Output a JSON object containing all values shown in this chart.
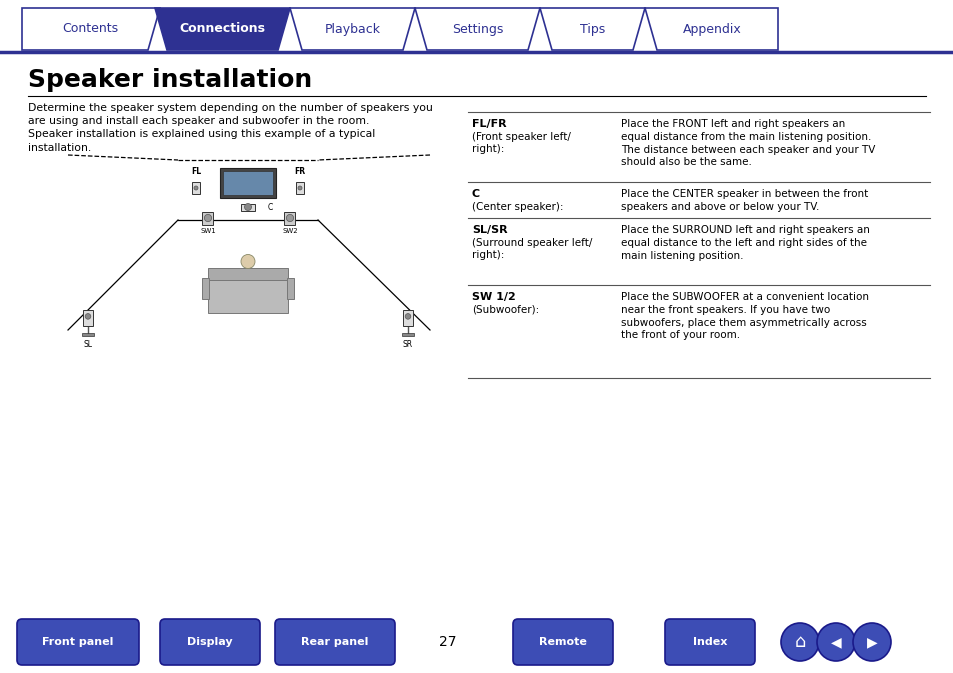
{
  "title": "Speaker installation",
  "nav_tabs": [
    "Contents",
    "Connections",
    "Playback",
    "Settings",
    "Tips",
    "Appendix"
  ],
  "active_tab": 1,
  "tab_color_active": "#2E3192",
  "tab_color_inactive": "#ffffff",
  "tab_border_color": "#2E3192",
  "tab_text_active": "#ffffff",
  "tab_text_inactive": "#2E3192",
  "nav_line_color": "#2E3192",
  "intro_text": "Determine the speaker system depending on the number of speakers you\nare using and install each speaker and subwoofer in the room.\nSpeaker installation is explained using this example of a typical\ninstallation.",
  "table_rows": [
    {
      "label_bold": "FL/FR",
      "label_normal": "(Front speaker left/\nright):",
      "desc": "Place the FRONT left and right speakers an\nequal distance from the main listening position.\nThe distance between each speaker and your TV\nshould also be the same."
    },
    {
      "label_bold": "C",
      "label_normal": "(Center speaker):",
      "desc": "Place the CENTER speaker in between the front\nspeakers and above or below your TV."
    },
    {
      "label_bold": "SL/SR",
      "label_normal": "(Surround speaker left/\nright):",
      "desc": "Place the SURROUND left and right speakers an\nequal distance to the left and right sides of the\nmain listening position."
    },
    {
      "label_bold": "SW 1/2",
      "label_normal": "(Subwoofer):",
      "desc": "Place the SUBWOOFER at a convenient location\nnear the front speakers. If you have two\nsubwoofers, place them asymmetrically across\nthe front of your room."
    }
  ],
  "bottom_buttons": [
    "Front panel",
    "Display",
    "Rear panel",
    "Remote",
    "Index"
  ],
  "page_number": "27",
  "button_color": "#3D4DB5",
  "button_text_color": "#ffffff"
}
